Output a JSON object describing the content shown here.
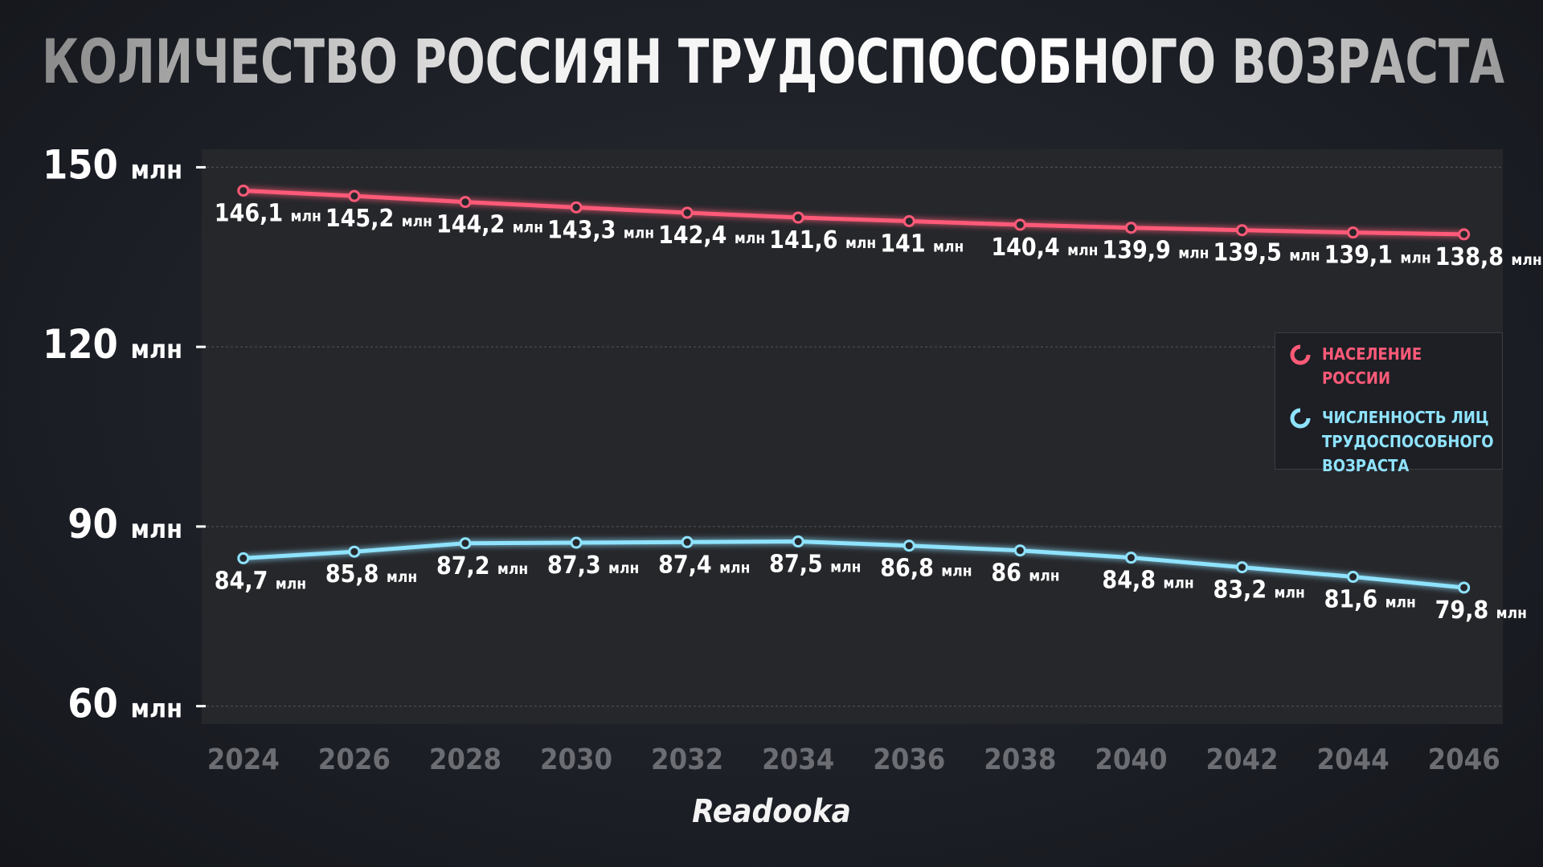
{
  "chart_data": {
    "type": "line",
    "title": "КОЛИЧЕСТВО РОССИЯН ТРУДОСПОСОБНОГО ВОЗРАСТА",
    "x": [
      2024,
      2026,
      2028,
      2030,
      2032,
      2034,
      2036,
      2038,
      2040,
      2042,
      2044,
      2046
    ],
    "series": [
      {
        "name": "НАСЕЛЕНИЕ РОССИИ",
        "color": "#ff5a78",
        "values": [
          146.1,
          145.2,
          144.2,
          143.3,
          142.4,
          141.6,
          141,
          140.4,
          139.9,
          139.5,
          139.1,
          138.8
        ],
        "value_labels": [
          "146,1 млн",
          "145,2 млн",
          "144,2 млн",
          "143,3 млн",
          "142,4 млн",
          "141,6 млн",
          "141 млн",
          "140,4 млн",
          "139,9 млн",
          "139,5 млн",
          "139,1 млн",
          "138,8 млн"
        ]
      },
      {
        "name": "ЧИСЛЕННОСТЬ ЛИЦ ТРУДОСПОСОБНОГО ВОЗРАСТА",
        "color": "#8fe3ff",
        "values": [
          84.7,
          85.8,
          87.2,
          87.3,
          87.4,
          87.5,
          86.8,
          86,
          84.8,
          83.2,
          81.6,
          79.8
        ],
        "value_labels": [
          "84,7 млн",
          "85,8 млн",
          "87,2 млн",
          "87,3 млн",
          "87,4 млн",
          "87,5 млн",
          "86,8 млн",
          "86 млн",
          "84,8 млн",
          "83,2 млн",
          "81,6 млн",
          "79,8 млн"
        ]
      }
    ],
    "xlim": [
      2023.25,
      2046.7
    ],
    "xticks": [
      2024,
      2026,
      2028,
      2030,
      2032,
      2034,
      2036,
      2038,
      2040,
      2042,
      2044,
      2046
    ],
    "ylim": [
      57,
      153
    ],
    "yticks": [
      {
        "value": 60,
        "label": "60 млн"
      },
      {
        "value": 90,
        "label": "90 млн"
      },
      {
        "value": 120,
        "label": "120 млн"
      },
      {
        "value": 150,
        "label": "150 млн"
      }
    ],
    "grid": true,
    "legend": "right",
    "logo": "Readooka"
  }
}
